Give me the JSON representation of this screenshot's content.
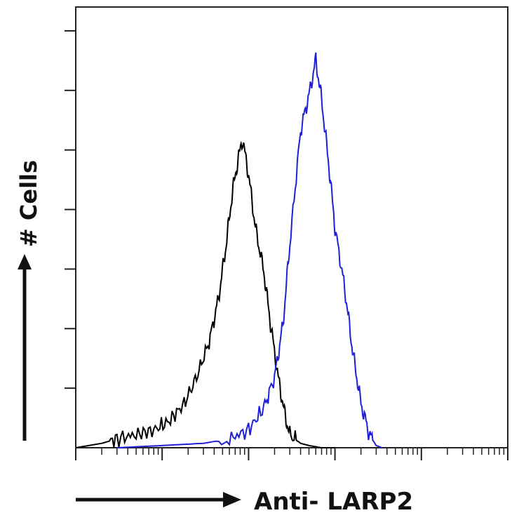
{
  "chart_data": {
    "type": "line",
    "title": "",
    "xlabel": "Anti- LARP2",
    "ylabel": "# Cells",
    "x_scale": "log",
    "xlim": [
      1,
      100000
    ],
    "ylim": [
      0,
      100
    ],
    "grid": false,
    "legend": "none",
    "series": [
      {
        "color": "#000000",
        "x": [
          1,
          2,
          3,
          5,
          8,
          12,
          18,
          25,
          35,
          45,
          55,
          65,
          75,
          85,
          100,
          120,
          150,
          180,
          220,
          260,
          300,
          400,
          500,
          700,
          1000
        ],
        "y": [
          0,
          1,
          2,
          3,
          4,
          6,
          10,
          16,
          24,
          34,
          46,
          58,
          65,
          70,
          62,
          50,
          40,
          28,
          16,
          8,
          3,
          1,
          0.5,
          0,
          0
        ]
      },
      {
        "color": "#1f1fd9",
        "x": [
          3,
          10,
          30,
          60,
          100,
          150,
          200,
          250,
          300,
          400,
          500,
          600,
          700,
          850,
          1000,
          1300,
          1600,
          2000,
          2500,
          3000,
          3500
        ],
        "y": [
          0,
          0.5,
          1,
          2,
          4,
          9,
          16,
          28,
          46,
          72,
          80,
          88,
          79,
          64,
          50,
          36,
          22,
          10,
          3,
          0.5,
          0
        ]
      }
    ]
  }
}
